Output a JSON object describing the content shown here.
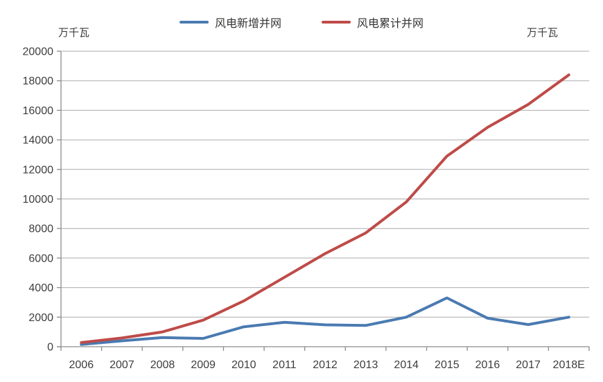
{
  "header": {
    "unit_label_left": "万千瓦",
    "unit_label_right": "万千瓦"
  },
  "legend": {
    "items": [
      {
        "label": "风电新增并网",
        "color": "#4A7AB1"
      },
      {
        "label": "风电累计并网",
        "color": "#BE4B48"
      }
    ]
  },
  "chart_data": {
    "type": "line",
    "title": "",
    "xlabel": "",
    "ylabel_left": "万千瓦",
    "ylabel_right": "万千瓦",
    "categories": [
      "2006",
      "2007",
      "2008",
      "2009",
      "2010",
      "2011",
      "2012",
      "2013",
      "2014",
      "2015",
      "2016",
      "2017",
      "2018E"
    ],
    "series": [
      {
        "name": "风电新增并网",
        "color": "#4A7AB1",
        "values": [
          150,
          400,
          620,
          560,
          1350,
          1650,
          1480,
          1440,
          2000,
          3300,
          1930,
          1500,
          2000
        ]
      },
      {
        "name": "风电累计并网",
        "color": "#BE4B48",
        "values": [
          280,
          590,
          1000,
          1800,
          3100,
          4700,
          6300,
          7700,
          9800,
          12900,
          14850,
          16400,
          18400
        ]
      }
    ],
    "ylim": [
      0,
      20000
    ],
    "yticks": [
      0,
      2000,
      4000,
      6000,
      8000,
      10000,
      12000,
      14000,
      16000,
      18000,
      20000
    ],
    "grid": true,
    "legend_position": "top",
    "colors": {
      "gridline": "#ababab",
      "axis": "#8c8c8c",
      "tick_label": "#3d3d3d",
      "background": "#ffffff"
    }
  }
}
